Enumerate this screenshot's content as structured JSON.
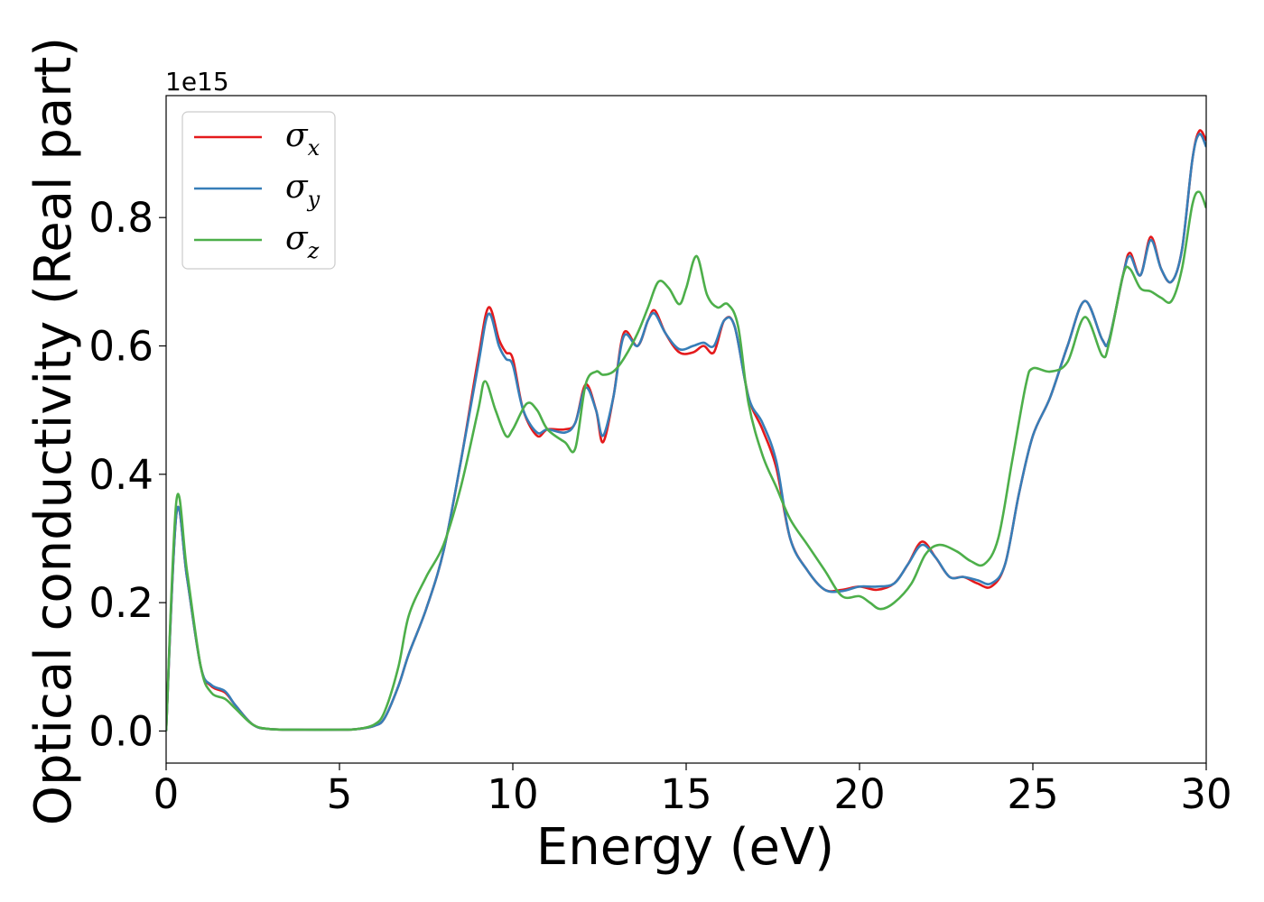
{
  "chart_data": {
    "type": "line",
    "xlabel": "Energy (eV)",
    "ylabel": "Optical conductivity (Real part)",
    "y_offset_label": "1e15",
    "xlim": [
      0,
      30
    ],
    "ylim": [
      -0.05,
      0.99
    ],
    "xticks": [
      0,
      5,
      10,
      15,
      20,
      25,
      30
    ],
    "xtick_labels": [
      "0",
      "5",
      "10",
      "15",
      "20",
      "25",
      "30"
    ],
    "yticks": [
      0.0,
      0.2,
      0.4,
      0.6,
      0.8
    ],
    "ytick_labels": [
      "0.0",
      "0.2",
      "0.4",
      "0.6",
      "0.8"
    ],
    "grid": false,
    "legend_position": "top-left",
    "series": [
      {
        "name": "σ",
        "subscript": "x",
        "color": "#e41a1c",
        "x": [
          0,
          0.3,
          0.6,
          1.0,
          1.3,
          1.7,
          2.0,
          2.5,
          3,
          4,
          5,
          5.5,
          6,
          6.3,
          6.7,
          7.0,
          7.5,
          8.0,
          8.5,
          9.0,
          9.3,
          9.6,
          9.8,
          10.0,
          10.3,
          10.7,
          11.0,
          11.5,
          11.8,
          12.1,
          12.4,
          12.6,
          12.9,
          13.2,
          13.6,
          13.9,
          14.1,
          14.4,
          14.8,
          15.2,
          15.5,
          15.8,
          16.1,
          16.4,
          16.8,
          17.2,
          17.6,
          18.0,
          18.5,
          19.0,
          19.5,
          20.0,
          20.5,
          21.0,
          21.4,
          21.8,
          22.2,
          22.6,
          23.0,
          23.4,
          23.8,
          24.2,
          24.6,
          25.0,
          25.5,
          26.0,
          26.5,
          27.0,
          27.2,
          27.6,
          27.8,
          28.1,
          28.4,
          28.7,
          29.0,
          29.3,
          29.6,
          29.8,
          30.0
        ],
        "y": [
          0.0,
          0.34,
          0.24,
          0.1,
          0.07,
          0.06,
          0.04,
          0.01,
          0.003,
          0.002,
          0.002,
          0.003,
          0.008,
          0.02,
          0.07,
          0.12,
          0.19,
          0.28,
          0.42,
          0.58,
          0.66,
          0.61,
          0.59,
          0.58,
          0.5,
          0.46,
          0.47,
          0.47,
          0.48,
          0.54,
          0.5,
          0.45,
          0.52,
          0.62,
          0.6,
          0.64,
          0.655,
          0.62,
          0.59,
          0.59,
          0.6,
          0.59,
          0.64,
          0.63,
          0.52,
          0.47,
          0.41,
          0.3,
          0.25,
          0.22,
          0.22,
          0.225,
          0.22,
          0.23,
          0.26,
          0.295,
          0.27,
          0.24,
          0.24,
          0.23,
          0.225,
          0.26,
          0.37,
          0.46,
          0.52,
          0.6,
          0.67,
          0.61,
          0.61,
          0.71,
          0.745,
          0.71,
          0.77,
          0.72,
          0.7,
          0.75,
          0.89,
          0.935,
          0.92
        ]
      },
      {
        "name": "σ",
        "subscript": "y",
        "color": "#377eb8",
        "x": [
          0,
          0.3,
          0.6,
          1.0,
          1.3,
          1.7,
          2.0,
          2.5,
          3,
          4,
          5,
          5.5,
          6,
          6.3,
          6.7,
          7.0,
          7.5,
          8.0,
          8.5,
          9.0,
          9.3,
          9.6,
          9.8,
          10.0,
          10.3,
          10.7,
          11.0,
          11.5,
          11.8,
          12.1,
          12.4,
          12.6,
          12.9,
          13.2,
          13.6,
          13.9,
          14.1,
          14.4,
          14.8,
          15.2,
          15.5,
          15.8,
          16.1,
          16.4,
          16.8,
          17.2,
          17.6,
          18.0,
          18.5,
          19.0,
          19.5,
          20.0,
          20.5,
          21.0,
          21.4,
          21.8,
          22.2,
          22.6,
          23.0,
          23.4,
          23.8,
          24.2,
          24.6,
          25.0,
          25.5,
          26.0,
          26.5,
          27.0,
          27.2,
          27.6,
          27.8,
          28.1,
          28.4,
          28.7,
          29.0,
          29.3,
          29.6,
          29.8,
          30.0
        ],
        "y": [
          0.0,
          0.34,
          0.24,
          0.1,
          0.072,
          0.062,
          0.04,
          0.01,
          0.003,
          0.002,
          0.002,
          0.003,
          0.008,
          0.02,
          0.07,
          0.12,
          0.19,
          0.28,
          0.42,
          0.57,
          0.65,
          0.6,
          0.58,
          0.57,
          0.5,
          0.465,
          0.47,
          0.465,
          0.48,
          0.535,
          0.5,
          0.46,
          0.52,
          0.615,
          0.6,
          0.64,
          0.65,
          0.62,
          0.595,
          0.6,
          0.605,
          0.6,
          0.64,
          0.63,
          0.52,
          0.48,
          0.42,
          0.3,
          0.25,
          0.22,
          0.218,
          0.225,
          0.225,
          0.23,
          0.26,
          0.29,
          0.27,
          0.24,
          0.24,
          0.235,
          0.23,
          0.26,
          0.37,
          0.46,
          0.52,
          0.6,
          0.67,
          0.61,
          0.61,
          0.71,
          0.74,
          0.71,
          0.765,
          0.72,
          0.7,
          0.75,
          0.89,
          0.93,
          0.91
        ]
      },
      {
        "name": "σ",
        "subscript": "z",
        "color": "#4daf4a",
        "x": [
          0,
          0.3,
          0.6,
          1.0,
          1.3,
          1.7,
          2.0,
          2.5,
          3,
          4,
          5,
          5.5,
          6,
          6.3,
          6.7,
          7.0,
          7.5,
          8.0,
          8.5,
          9.0,
          9.2,
          9.5,
          9.8,
          10.0,
          10.4,
          10.7,
          11.0,
          11.5,
          11.8,
          12.1,
          12.4,
          12.6,
          12.9,
          13.2,
          13.6,
          13.9,
          14.2,
          14.5,
          14.8,
          15.0,
          15.3,
          15.6,
          15.9,
          16.2,
          16.5,
          16.8,
          17.2,
          17.6,
          18.0,
          18.5,
          19.0,
          19.5,
          20.0,
          20.3,
          20.6,
          21.0,
          21.5,
          21.9,
          22.3,
          22.8,
          23.2,
          23.6,
          24.0,
          24.4,
          24.8,
          25.0,
          25.5,
          26.0,
          26.5,
          27.0,
          27.2,
          27.6,
          27.8,
          28.1,
          28.4,
          28.7,
          29.0,
          29.3,
          29.6,
          29.8,
          30.0
        ],
        "y": [
          0.0,
          0.36,
          0.25,
          0.1,
          0.06,
          0.05,
          0.035,
          0.01,
          0.003,
          0.002,
          0.002,
          0.003,
          0.01,
          0.03,
          0.1,
          0.18,
          0.24,
          0.29,
          0.38,
          0.5,
          0.545,
          0.5,
          0.46,
          0.47,
          0.51,
          0.5,
          0.47,
          0.45,
          0.44,
          0.54,
          0.56,
          0.555,
          0.56,
          0.58,
          0.62,
          0.66,
          0.7,
          0.69,
          0.665,
          0.69,
          0.74,
          0.68,
          0.66,
          0.665,
          0.63,
          0.51,
          0.43,
          0.38,
          0.33,
          0.29,
          0.25,
          0.21,
          0.21,
          0.2,
          0.19,
          0.2,
          0.23,
          0.275,
          0.29,
          0.28,
          0.265,
          0.26,
          0.3,
          0.42,
          0.54,
          0.565,
          0.56,
          0.575,
          0.645,
          0.585,
          0.605,
          0.71,
          0.72,
          0.69,
          0.685,
          0.675,
          0.67,
          0.72,
          0.82,
          0.84,
          0.815
        ]
      }
    ]
  }
}
